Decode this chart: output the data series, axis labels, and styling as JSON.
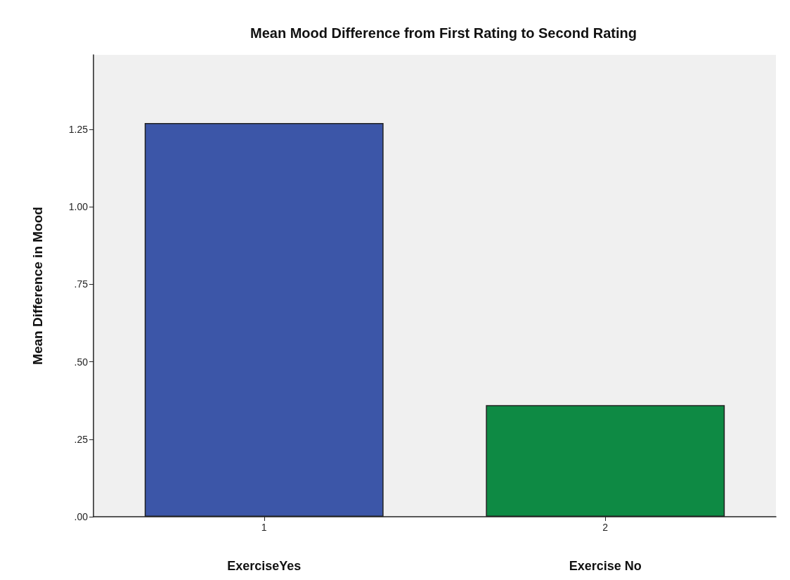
{
  "chart_data": {
    "type": "bar",
    "title": "Mean Mood Difference from First Rating to Second Rating",
    "ylabel": "Mean Difference in Mood",
    "categories": [
      "1",
      "2"
    ],
    "values": [
      1.27,
      0.36
    ],
    "colors": [
      "#3c56a8",
      "#0e8a44"
    ],
    "ylim": [
      0,
      1.49
    ],
    "yticks": [
      {
        "value": 0,
        "label": ".00"
      },
      {
        "value": 0.25,
        "label": ".25"
      },
      {
        "value": 0.5,
        "label": ".50"
      },
      {
        "value": 0.75,
        "label": ".75"
      },
      {
        "value": 1,
        "label": "1.00"
      },
      {
        "value": 1.25,
        "label": "1.25"
      }
    ],
    "annotations": [
      "ExerciseYes",
      "Exercise No"
    ],
    "grid": false
  }
}
